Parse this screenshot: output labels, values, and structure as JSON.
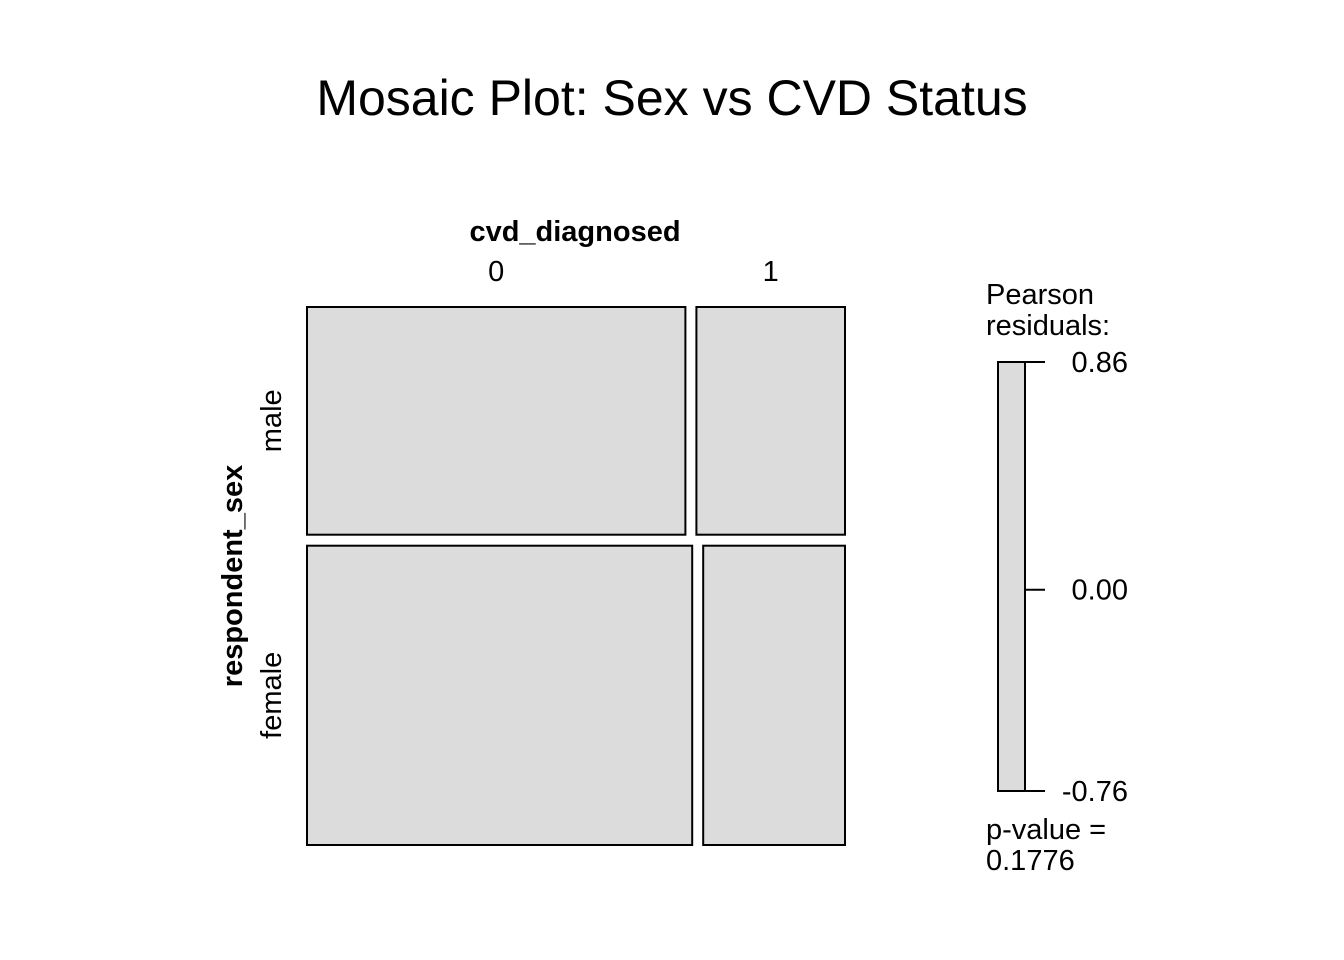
{
  "chart_data": {
    "type": "mosaic",
    "title": "Mosaic Plot: Sex vs CVD Status",
    "column_variable": "cvd_diagnosed",
    "row_variable": "respondent_sex",
    "columns": [
      "0",
      "1"
    ],
    "rows": [
      "male",
      "female"
    ],
    "row_proportions": [
      0.432,
      0.568
    ],
    "cells": [
      {
        "row": "male",
        "col": "0",
        "within_row_proportion": 0.718
      },
      {
        "row": "male",
        "col": "1",
        "within_row_proportion": 0.282
      },
      {
        "row": "female",
        "col": "0",
        "within_row_proportion": 0.731
      },
      {
        "row": "female",
        "col": "1",
        "within_row_proportion": 0.269
      }
    ],
    "cell_fill": "#dcdcdc",
    "legend": {
      "title_line1": "Pearson",
      "title_line2": "residuals:",
      "ticks": [
        "0.86",
        "0.00",
        "-0.76"
      ],
      "max": 0.86,
      "min": -0.76,
      "pvalue_line1": "p-value =",
      "pvalue_line2": "0.1776"
    }
  }
}
